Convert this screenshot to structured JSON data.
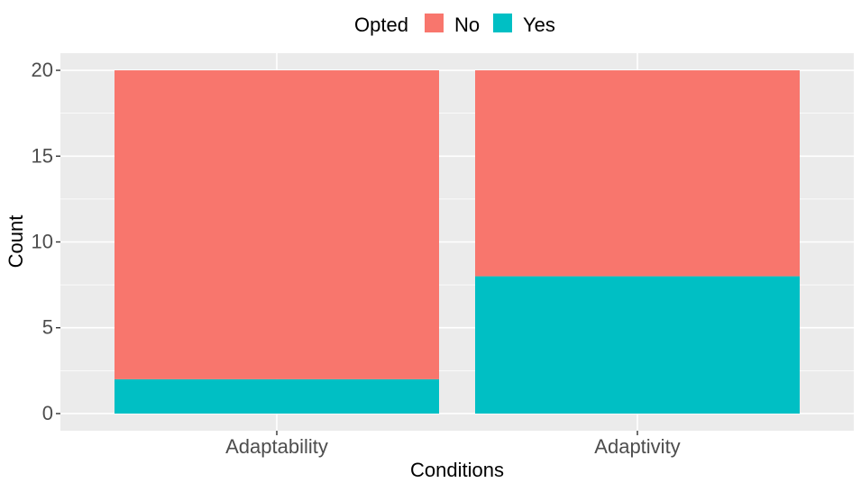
{
  "chart_data": {
    "type": "bar",
    "stacked": true,
    "categories": [
      "Adaptability",
      "Adaptivity"
    ],
    "series": [
      {
        "name": "No",
        "values": [
          18,
          12
        ],
        "color": "#F8766D"
      },
      {
        "name": "Yes",
        "values": [
          2,
          8
        ],
        "color": "#00BFC4"
      }
    ],
    "xlabel": "Conditions",
    "ylabel": "Count",
    "ylim": [
      -1,
      21
    ],
    "yticks": [
      0,
      5,
      10,
      15,
      20
    ],
    "legend": {
      "title": "Opted",
      "position": "top"
    },
    "grid": true,
    "panel_color": "#EBEBEB"
  }
}
